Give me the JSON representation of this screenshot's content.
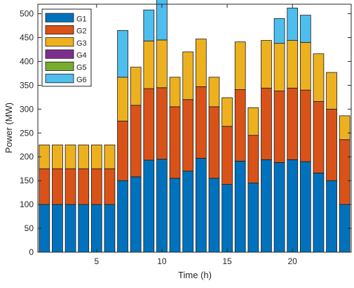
{
  "chart_data": {
    "type": "bar",
    "stacked": true,
    "xlabel": "Time (h)",
    "ylabel": "Power (MW)",
    "ylim": [
      0,
      520
    ],
    "xlim": [
      0.5,
      24.5
    ],
    "xticks": [
      5,
      10,
      15,
      20
    ],
    "yticks": [
      0,
      50,
      100,
      150,
      200,
      250,
      300,
      350,
      400,
      450,
      500
    ],
    "grid": false,
    "legend_position": "top-left",
    "categories": [
      1,
      2,
      3,
      4,
      5,
      6,
      7,
      8,
      9,
      10,
      11,
      12,
      13,
      14,
      15,
      16,
      17,
      18,
      19,
      20,
      21,
      22,
      23,
      24
    ],
    "series": [
      {
        "name": "G1",
        "color": "#0072BD",
        "values": [
          100,
          100,
          100,
          100,
          100,
          100,
          150,
          158,
          193,
          195,
          155,
          170,
          197,
          155,
          142,
          191,
          145,
          194,
          188,
          194,
          190,
          166,
          150,
          100
        ]
      },
      {
        "name": "G2",
        "color": "#D95319",
        "values": [
          75,
          75,
          75,
          75,
          75,
          75,
          125,
          150,
          150,
          150,
          150,
          150,
          150,
          150,
          122,
          150,
          100,
          150,
          150,
          150,
          150,
          150,
          150,
          136
        ]
      },
      {
        "name": "G3",
        "color": "#EDB120",
        "values": [
          50,
          50,
          50,
          50,
          50,
          50,
          92,
          80,
          100,
          100,
          62,
          100,
          100,
          62,
          60,
          100,
          58,
          100,
          100,
          100,
          100,
          100,
          77,
          50
        ]
      },
      {
        "name": "G4",
        "color": "#7E2F8E",
        "values": [
          0,
          0,
          0,
          0,
          0,
          0,
          0,
          0,
          0,
          0,
          0,
          0,
          0,
          0,
          0,
          0,
          0,
          0,
          0,
          0,
          0,
          0,
          0,
          0
        ]
      },
      {
        "name": "G5",
        "color": "#77AC30",
        "values": [
          0,
          0,
          0,
          0,
          0,
          0,
          0,
          0,
          0,
          0,
          0,
          0,
          0,
          0,
          0,
          0,
          0,
          0,
          0,
          0,
          0,
          0,
          0,
          0
        ]
      },
      {
        "name": "G6",
        "color": "#4DBEEE",
        "values": [
          0,
          0,
          0,
          0,
          0,
          0,
          98,
          0,
          65,
          85,
          0,
          0,
          0,
          0,
          0,
          0,
          0,
          0,
          52,
          68,
          57,
          0,
          0,
          0
        ]
      }
    ]
  }
}
